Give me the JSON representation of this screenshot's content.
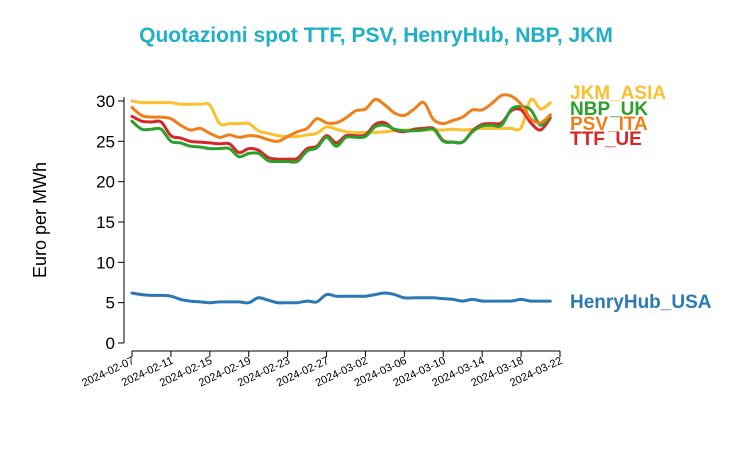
{
  "title": "Quotazioni spot TTF, PSV, HenryHub, NBP, JKM",
  "chart_data": {
    "type": "line",
    "title": "Quotazioni spot TTF, PSV, HenryHub, NBP, JKM",
    "xlabel": "",
    "ylabel": "Euro per MWh",
    "ylim": [
      0,
      30
    ],
    "yticks": [
      0,
      5,
      10,
      15,
      20,
      25,
      30
    ],
    "xlim": [
      "2024-02-07",
      "2024-03-22"
    ],
    "xticks": [
      "2024-02-07",
      "2024-02-11",
      "2024-02-15",
      "2024-02-19",
      "2024-02-23",
      "2024-02-27",
      "2024-03-02",
      "2024-03-06",
      "2024-03-10",
      "2024-03-14",
      "2024-03-18",
      "2024-03-22"
    ],
    "grid": false,
    "legend": "right, labels at line ends",
    "series": [
      {
        "name": "JKM_ASIA",
        "color": "#fbc02d",
        "x": [
          "2024-02-07",
          "2024-02-08",
          "2024-02-09",
          "2024-02-10",
          "2024-02-11",
          "2024-02-12",
          "2024-02-13",
          "2024-02-14",
          "2024-02-15",
          "2024-02-16",
          "2024-02-17",
          "2024-02-18",
          "2024-02-19",
          "2024-02-20",
          "2024-02-21",
          "2024-02-22",
          "2024-02-23",
          "2024-02-24",
          "2024-02-25",
          "2024-02-26",
          "2024-02-27",
          "2024-02-28",
          "2024-02-29",
          "2024-03-01",
          "2024-03-02",
          "2024-03-03",
          "2024-03-04",
          "2024-03-05",
          "2024-03-06",
          "2024-03-07",
          "2024-03-08",
          "2024-03-09",
          "2024-03-10",
          "2024-03-11",
          "2024-03-12",
          "2024-03-13",
          "2024-03-14",
          "2024-03-15",
          "2024-03-16",
          "2024-03-17",
          "2024-03-18",
          "2024-03-19",
          "2024-03-20",
          "2024-03-21"
        ],
        "values": [
          30.0,
          29.8,
          29.8,
          29.8,
          29.8,
          29.6,
          29.6,
          29.6,
          29.5,
          27.2,
          27.2,
          27.2,
          27.2,
          26.3,
          26.0,
          25.7,
          25.6,
          25.6,
          25.8,
          26.0,
          26.8,
          26.5,
          26.2,
          26.1,
          26.1,
          26.1,
          26.2,
          26.3,
          26.4,
          26.4,
          26.4,
          26.4,
          26.4,
          26.5,
          26.4,
          26.5,
          26.6,
          26.6,
          26.6,
          26.6,
          26.7,
          30.2,
          29.0,
          29.8
        ]
      },
      {
        "name": "NBP_UK",
        "color": "#2ca02c",
        "x": [
          "2024-02-07",
          "2024-02-08",
          "2024-02-09",
          "2024-02-10",
          "2024-02-11",
          "2024-02-12",
          "2024-02-13",
          "2024-02-14",
          "2024-02-15",
          "2024-02-16",
          "2024-02-17",
          "2024-02-18",
          "2024-02-19",
          "2024-02-20",
          "2024-02-21",
          "2024-02-22",
          "2024-02-23",
          "2024-02-24",
          "2024-02-25",
          "2024-02-26",
          "2024-02-27",
          "2024-02-28",
          "2024-02-29",
          "2024-03-01",
          "2024-03-02",
          "2024-03-03",
          "2024-03-04",
          "2024-03-05",
          "2024-03-06",
          "2024-03-07",
          "2024-03-08",
          "2024-03-09",
          "2024-03-10",
          "2024-03-11",
          "2024-03-12",
          "2024-03-13",
          "2024-03-14",
          "2024-03-15",
          "2024-03-16",
          "2024-03-17",
          "2024-03-18",
          "2024-03-19",
          "2024-03-20",
          "2024-03-21"
        ],
        "values": [
          27.5,
          26.5,
          26.5,
          26.5,
          25.0,
          24.8,
          24.4,
          24.3,
          24.1,
          24.1,
          24.1,
          23.1,
          23.5,
          23.5,
          22.6,
          22.5,
          22.5,
          22.5,
          23.8,
          24.2,
          25.5,
          24.4,
          25.5,
          25.5,
          25.6,
          26.8,
          27.0,
          26.5,
          26.3,
          26.3,
          26.4,
          26.5,
          25.0,
          24.9,
          24.9,
          26.2,
          26.9,
          27.0,
          27.0,
          29.0,
          29.3,
          28.9,
          27.0,
          28.2
        ]
      },
      {
        "name": "PSV_ITA",
        "color": "#f07f1a",
        "x": [
          "2024-02-07",
          "2024-02-08",
          "2024-02-09",
          "2024-02-10",
          "2024-02-11",
          "2024-02-12",
          "2024-02-13",
          "2024-02-14",
          "2024-02-15",
          "2024-02-16",
          "2024-02-17",
          "2024-02-18",
          "2024-02-19",
          "2024-02-20",
          "2024-02-21",
          "2024-02-22",
          "2024-02-23",
          "2024-02-24",
          "2024-02-25",
          "2024-02-26",
          "2024-02-27",
          "2024-02-28",
          "2024-02-29",
          "2024-03-01",
          "2024-03-02",
          "2024-03-03",
          "2024-03-04",
          "2024-03-05",
          "2024-03-06",
          "2024-03-07",
          "2024-03-08",
          "2024-03-09",
          "2024-03-10",
          "2024-03-11",
          "2024-03-12",
          "2024-03-13",
          "2024-03-14",
          "2024-03-15",
          "2024-03-16",
          "2024-03-17",
          "2024-03-18",
          "2024-03-19",
          "2024-03-20",
          "2024-03-21"
        ],
        "values": [
          29.2,
          28.2,
          28.0,
          28.0,
          27.8,
          27.0,
          26.4,
          26.6,
          26.0,
          25.5,
          25.8,
          25.5,
          25.7,
          25.6,
          25.2,
          25.0,
          25.6,
          26.2,
          26.6,
          27.8,
          27.3,
          27.3,
          27.9,
          28.8,
          29.0,
          30.2,
          29.5,
          28.5,
          28.2,
          29.0,
          29.8,
          27.7,
          27.2,
          27.6,
          28.0,
          28.9,
          28.9,
          29.7,
          30.7,
          30.6,
          29.6,
          27.8,
          27.3,
          28.3
        ]
      },
      {
        "name": "TTF_UE",
        "color": "#d62728",
        "x": [
          "2024-02-07",
          "2024-02-08",
          "2024-02-09",
          "2024-02-10",
          "2024-02-11",
          "2024-02-12",
          "2024-02-13",
          "2024-02-14",
          "2024-02-15",
          "2024-02-16",
          "2024-02-17",
          "2024-02-18",
          "2024-02-19",
          "2024-02-20",
          "2024-02-21",
          "2024-02-22",
          "2024-02-23",
          "2024-02-24",
          "2024-02-25",
          "2024-02-26",
          "2024-02-27",
          "2024-02-28",
          "2024-02-29",
          "2024-03-01",
          "2024-03-02",
          "2024-03-03",
          "2024-03-04",
          "2024-03-05",
          "2024-03-06",
          "2024-03-07",
          "2024-03-08",
          "2024-03-09",
          "2024-03-10",
          "2024-03-11",
          "2024-03-12",
          "2024-03-13",
          "2024-03-14",
          "2024-03-15",
          "2024-03-16",
          "2024-03-17",
          "2024-03-18",
          "2024-03-19",
          "2024-03-20",
          "2024-03-21"
        ],
        "values": [
          28.1,
          27.5,
          27.4,
          27.4,
          25.7,
          25.4,
          25.0,
          24.9,
          24.8,
          24.7,
          24.7,
          23.6,
          24.1,
          23.9,
          23.0,
          22.8,
          22.8,
          22.9,
          24.1,
          24.4,
          25.7,
          24.8,
          25.7,
          25.7,
          25.8,
          27.1,
          27.3,
          26.4,
          26.2,
          26.5,
          26.6,
          26.6,
          25.1,
          24.9,
          24.9,
          26.3,
          27.1,
          27.2,
          27.3,
          28.8,
          28.9,
          27.3,
          26.4,
          27.9
        ]
      },
      {
        "name": "HenryHub_USA",
        "color": "#2a78b5",
        "x": [
          "2024-02-07",
          "2024-02-08",
          "2024-02-09",
          "2024-02-10",
          "2024-02-11",
          "2024-02-12",
          "2024-02-13",
          "2024-02-14",
          "2024-02-15",
          "2024-02-16",
          "2024-02-17",
          "2024-02-18",
          "2024-02-19",
          "2024-02-20",
          "2024-02-21",
          "2024-02-22",
          "2024-02-23",
          "2024-02-24",
          "2024-02-25",
          "2024-02-26",
          "2024-02-27",
          "2024-02-28",
          "2024-02-29",
          "2024-03-01",
          "2024-03-02",
          "2024-03-03",
          "2024-03-04",
          "2024-03-05",
          "2024-03-06",
          "2024-03-07",
          "2024-03-08",
          "2024-03-09",
          "2024-03-10",
          "2024-03-11",
          "2024-03-12",
          "2024-03-13",
          "2024-03-14",
          "2024-03-15",
          "2024-03-16",
          "2024-03-17",
          "2024-03-18",
          "2024-03-19",
          "2024-03-20",
          "2024-03-21"
        ],
        "values": [
          6.2,
          6.0,
          5.9,
          5.9,
          5.8,
          5.4,
          5.2,
          5.1,
          5.0,
          5.1,
          5.1,
          5.1,
          5.0,
          5.6,
          5.3,
          5.0,
          5.0,
          5.0,
          5.2,
          5.1,
          6.0,
          5.8,
          5.8,
          5.8,
          5.8,
          6.0,
          6.2,
          6.0,
          5.6,
          5.6,
          5.6,
          5.6,
          5.5,
          5.4,
          5.2,
          5.4,
          5.2,
          5.2,
          5.2,
          5.2,
          5.4,
          5.2,
          5.2,
          5.2
        ]
      }
    ]
  }
}
